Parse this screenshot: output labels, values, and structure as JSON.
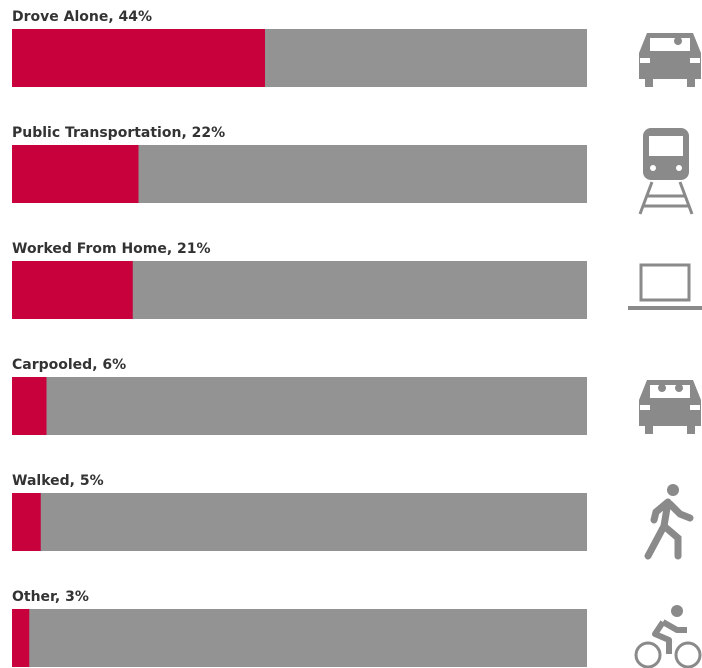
{
  "chart_data": {
    "type": "bar",
    "orientation": "horizontal",
    "categories": [
      "Drove Alone, 44%",
      "Public Transportation, 22%",
      "Worked From Home, 21%",
      "Carpooled, 6%",
      "Walked, 5%",
      "Other, 3%"
    ],
    "values": [
      44,
      22,
      21,
      6,
      5,
      3
    ],
    "xlim": [
      0,
      100
    ],
    "color": "#c8003c",
    "track_color": "#939393"
  }
}
